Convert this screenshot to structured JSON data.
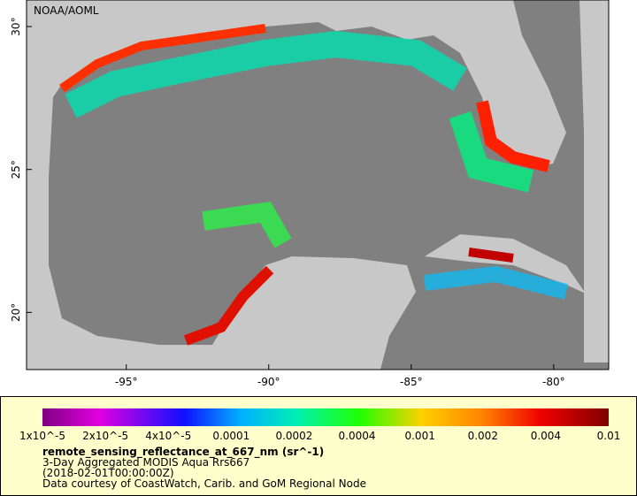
{
  "map": {
    "title": "NOAA/AOML",
    "xlim": [
      -98.5,
      -78.07
    ],
    "ylim": [
      18.0,
      30.93
    ],
    "xticks": [
      {
        "value": -95,
        "label": "-95°"
      },
      {
        "value": -90,
        "label": "-90°"
      },
      {
        "value": -85,
        "label": "-85°"
      },
      {
        "value": -80,
        "label": "-80°"
      }
    ],
    "yticks": [
      {
        "value": 20,
        "label": "20°"
      },
      {
        "value": 25,
        "label": "25°"
      },
      {
        "value": 30,
        "label": "30°"
      }
    ]
  },
  "colorbar": {
    "ticks": [
      "1x10^-5",
      "2x10^-5",
      "4x10^-5",
      "0.0001",
      "0.0002",
      "0.0004",
      "0.001",
      "0.002",
      "0.004",
      "0.01"
    ],
    "label": "remote_sensing_reflectance_at_667_nm (sr^-1)",
    "lines": [
      "3-Day Aggregated MODIS Aqua Rrs667",
      "(2018-02-01T00:00:00Z)",
      "Data courtesy of CoastWatch, Carib. and GoM Regional Node"
    ]
  }
}
